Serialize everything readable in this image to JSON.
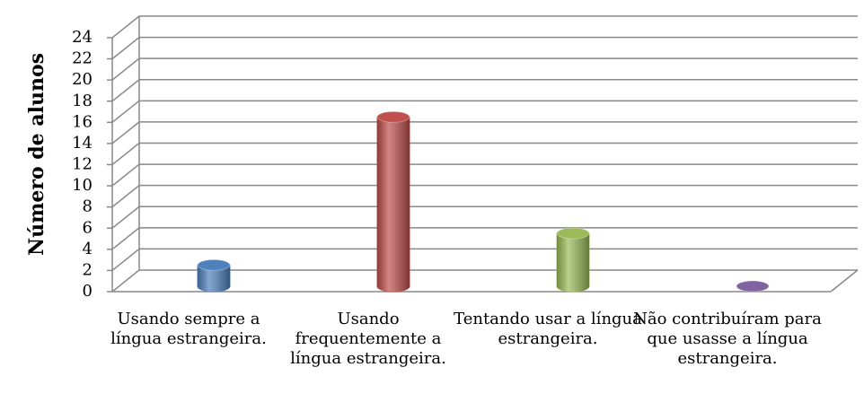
{
  "chart_data": {
    "type": "bar3d",
    "y_label": "Número de alunos",
    "categories": [
      "Usando sempre a língua estrangeira.",
      "Usando frequentemente a língua estrangeira.",
      "Tentando usar a língua estrangeira.",
      "Não contribuíram para que usasse a língua estrangeira."
    ],
    "values": [
      2,
      16,
      5,
      0
    ],
    "colors": [
      "#4f81bd",
      "#c0504d",
      "#9bbb59",
      "#8064a2"
    ],
    "ylim": [
      0,
      24
    ],
    "yticks": [
      0,
      2,
      4,
      6,
      8,
      10,
      12,
      14,
      16,
      18,
      20,
      22,
      24
    ],
    "grid": true
  }
}
